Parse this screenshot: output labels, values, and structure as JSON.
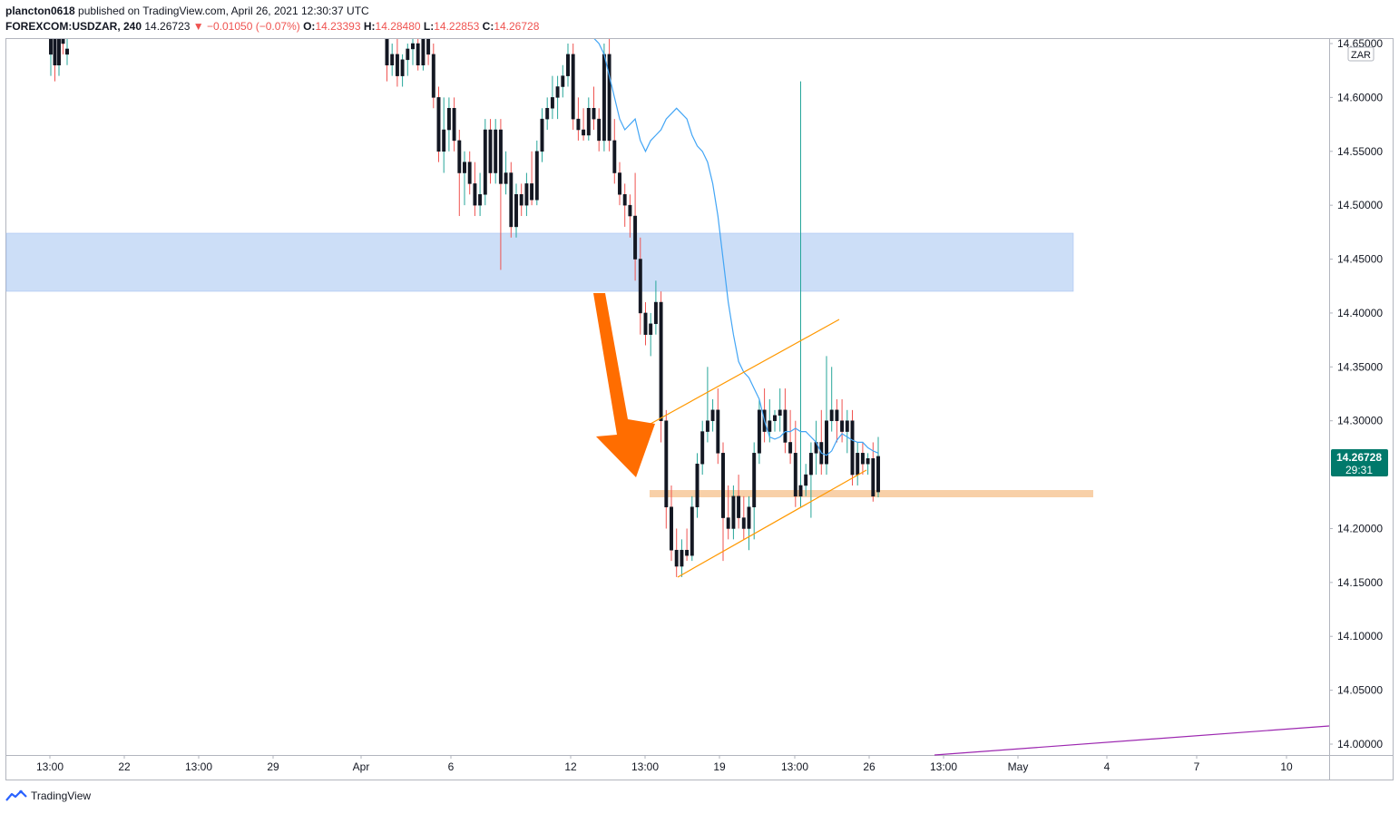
{
  "header": {
    "publisher": "plancton0618",
    "published_text": "published on TradingView.com, April 26, 2021 12:30:37 UTC",
    "symbol": "FOREXCOM:USDZAR, 240",
    "price": "14.26723",
    "change": "▼ −0.01050 (−0.07%)",
    "open_label": "O:",
    "open": "14.23393",
    "high_label": "H:",
    "high": "14.28480",
    "low_label": "L:",
    "low": "14.22853",
    "close_label": "C:",
    "close": "14.26728"
  },
  "footer": {
    "brand": "TradingView",
    "logo_icon": "tradingview-logo-icon"
  },
  "colors": {
    "up": "#26a69a",
    "down": "#ef5350",
    "ma": "#42a5f5",
    "zone": "#c7dbf7",
    "support": "#f8d0a8",
    "channel": "#ff9800",
    "arrow": "#ff6d00",
    "purple": "#9c27b0",
    "price_badge": "#00796b"
  },
  "chart_data": {
    "type": "candlestick",
    "title": "",
    "xlabel": "",
    "ylabel": "",
    "currency_label": "ZAR",
    "ylim": [
      13.985,
      14.65
    ],
    "y_ticks": [
      "14.65000",
      "14.60000",
      "14.55000",
      "14.50000",
      "14.45000",
      "14.40000",
      "14.35000",
      "14.30000",
      "14.20000",
      "14.15000",
      "14.10000",
      "14.05000",
      "14.00000"
    ],
    "x_ticks": [
      "13:00",
      "22",
      "13:00",
      "29",
      "Apr",
      "6",
      "12",
      "13:00",
      "19",
      "13:00",
      "26",
      "13:00",
      "May",
      "4",
      "7",
      "10"
    ],
    "last_price": "14.26728",
    "countdown": "29:31",
    "grid": false,
    "candles": [
      {
        "o": 14.64,
        "h": 14.66,
        "l": 14.62,
        "c": 14.66
      },
      {
        "o": 14.66,
        "h": 14.67,
        "l": 14.615,
        "c": 14.63
      },
      {
        "o": 14.63,
        "h": 14.66,
        "l": 14.62,
        "c": 14.66
      },
      {
        "o": 14.66,
        "h": 14.67,
        "l": 14.64,
        "c": 14.65
      },
      {
        "o": 14.64,
        "h": 14.66,
        "l": 14.63,
        "c": 14.645
      },
      {
        "o": 14.66,
        "h": 14.67,
        "l": 14.615,
        "c": 14.63
      },
      {
        "o": 14.63,
        "h": 14.65,
        "l": 14.62,
        "c": 14.64
      },
      {
        "o": 14.64,
        "h": 14.66,
        "l": 14.61,
        "c": 14.62
      },
      {
        "o": 14.62,
        "h": 14.64,
        "l": 14.61,
        "c": 14.635
      },
      {
        "o": 14.635,
        "h": 14.65,
        "l": 14.62,
        "c": 14.645
      },
      {
        "o": 14.645,
        "h": 14.66,
        "l": 14.63,
        "c": 14.65
      },
      {
        "o": 14.65,
        "h": 14.66,
        "l": 14.625,
        "c": 14.63
      },
      {
        "o": 14.63,
        "h": 14.66,
        "l": 14.625,
        "c": 14.655
      },
      {
        "o": 14.655,
        "h": 14.66,
        "l": 14.63,
        "c": 14.64
      },
      {
        "o": 14.64,
        "h": 14.65,
        "l": 14.59,
        "c": 14.6
      },
      {
        "o": 14.6,
        "h": 14.61,
        "l": 14.54,
        "c": 14.55
      },
      {
        "o": 14.55,
        "h": 14.6,
        "l": 14.53,
        "c": 14.57
      },
      {
        "o": 14.57,
        "h": 14.6,
        "l": 14.55,
        "c": 14.59
      },
      {
        "o": 14.59,
        "h": 14.6,
        "l": 14.55,
        "c": 14.56
      },
      {
        "o": 14.56,
        "h": 14.57,
        "l": 14.49,
        "c": 14.53
      },
      {
        "o": 14.53,
        "h": 14.55,
        "l": 14.5,
        "c": 14.54
      },
      {
        "o": 14.54,
        "h": 14.55,
        "l": 14.51,
        "c": 14.52
      },
      {
        "o": 14.52,
        "h": 14.54,
        "l": 14.49,
        "c": 14.5
      },
      {
        "o": 14.5,
        "h": 14.53,
        "l": 14.49,
        "c": 14.51
      },
      {
        "o": 14.51,
        "h": 14.58,
        "l": 14.5,
        "c": 14.57
      },
      {
        "o": 14.57,
        "h": 14.58,
        "l": 14.52,
        "c": 14.53
      },
      {
        "o": 14.53,
        "h": 14.58,
        "l": 14.52,
        "c": 14.57
      },
      {
        "o": 14.57,
        "h": 14.58,
        "l": 14.44,
        "c": 14.52
      },
      {
        "o": 14.52,
        "h": 14.55,
        "l": 14.51,
        "c": 14.53
      },
      {
        "o": 14.53,
        "h": 14.54,
        "l": 14.47,
        "c": 14.48
      },
      {
        "o": 14.48,
        "h": 14.52,
        "l": 14.47,
        "c": 14.51
      },
      {
        "o": 14.51,
        "h": 14.52,
        "l": 14.49,
        "c": 14.5
      },
      {
        "o": 14.5,
        "h": 14.53,
        "l": 14.49,
        "c": 14.52
      },
      {
        "o": 14.52,
        "h": 14.55,
        "l": 14.5,
        "c": 14.505
      },
      {
        "o": 14.505,
        "h": 14.56,
        "l": 14.5,
        "c": 14.55
      },
      {
        "o": 14.55,
        "h": 14.59,
        "l": 14.54,
        "c": 14.58
      },
      {
        "o": 14.58,
        "h": 14.6,
        "l": 14.57,
        "c": 14.59
      },
      {
        "o": 14.59,
        "h": 14.62,
        "l": 14.58,
        "c": 14.6
      },
      {
        "o": 14.6,
        "h": 14.62,
        "l": 14.58,
        "c": 14.61
      },
      {
        "o": 14.61,
        "h": 14.63,
        "l": 14.6,
        "c": 14.62
      },
      {
        "o": 14.62,
        "h": 14.65,
        "l": 14.61,
        "c": 14.64
      },
      {
        "o": 14.64,
        "h": 14.65,
        "l": 14.57,
        "c": 14.58
      },
      {
        "o": 14.58,
        "h": 14.6,
        "l": 14.56,
        "c": 14.57
      },
      {
        "o": 14.57,
        "h": 14.59,
        "l": 14.56,
        "c": 14.565
      },
      {
        "o": 14.565,
        "h": 14.6,
        "l": 14.56,
        "c": 14.59
      },
      {
        "o": 14.59,
        "h": 14.61,
        "l": 14.57,
        "c": 14.58
      },
      {
        "o": 14.58,
        "h": 14.59,
        "l": 14.55,
        "c": 14.56
      },
      {
        "o": 14.56,
        "h": 14.65,
        "l": 14.55,
        "c": 14.64
      },
      {
        "o": 14.64,
        "h": 14.66,
        "l": 14.55,
        "c": 14.56
      },
      {
        "o": 14.56,
        "h": 14.58,
        "l": 14.52,
        "c": 14.53
      },
      {
        "o": 14.53,
        "h": 14.54,
        "l": 14.5,
        "c": 14.51
      },
      {
        "o": 14.51,
        "h": 14.52,
        "l": 14.48,
        "c": 14.5
      },
      {
        "o": 14.5,
        "h": 14.51,
        "l": 14.47,
        "c": 14.49
      },
      {
        "o": 14.49,
        "h": 14.53,
        "l": 14.43,
        "c": 14.45
      },
      {
        "o": 14.45,
        "h": 14.47,
        "l": 14.38,
        "c": 14.4
      },
      {
        "o": 14.4,
        "h": 14.41,
        "l": 14.37,
        "c": 14.38
      },
      {
        "o": 14.38,
        "h": 14.4,
        "l": 14.36,
        "c": 14.39
      },
      {
        "o": 14.39,
        "h": 14.43,
        "l": 14.38,
        "c": 14.41
      },
      {
        "o": 14.41,
        "h": 14.42,
        "l": 14.28,
        "c": 14.3
      },
      {
        "o": 14.3,
        "h": 14.31,
        "l": 14.2,
        "c": 14.22
      },
      {
        "o": 14.22,
        "h": 14.24,
        "l": 14.17,
        "c": 14.18
      },
      {
        "o": 14.18,
        "h": 14.2,
        "l": 14.155,
        "c": 14.165
      },
      {
        "o": 14.165,
        "h": 14.19,
        "l": 14.155,
        "c": 14.18
      },
      {
        "o": 14.18,
        "h": 14.2,
        "l": 14.17,
        "c": 14.175
      },
      {
        "o": 14.175,
        "h": 14.23,
        "l": 14.17,
        "c": 14.22
      },
      {
        "o": 14.22,
        "h": 14.27,
        "l": 14.21,
        "c": 14.26
      },
      {
        "o": 14.26,
        "h": 14.3,
        "l": 14.25,
        "c": 14.29
      },
      {
        "o": 14.29,
        "h": 14.35,
        "l": 14.28,
        "c": 14.3
      },
      {
        "o": 14.3,
        "h": 14.32,
        "l": 14.29,
        "c": 14.31
      },
      {
        "o": 14.31,
        "h": 14.33,
        "l": 14.26,
        "c": 14.27
      },
      {
        "o": 14.27,
        "h": 14.28,
        "l": 14.17,
        "c": 14.21
      },
      {
        "o": 14.21,
        "h": 14.24,
        "l": 14.19,
        "c": 14.2
      },
      {
        "o": 14.2,
        "h": 14.24,
        "l": 14.19,
        "c": 14.23
      },
      {
        "o": 14.23,
        "h": 14.25,
        "l": 14.2,
        "c": 14.21
      },
      {
        "o": 14.21,
        "h": 14.23,
        "l": 14.19,
        "c": 14.2
      },
      {
        "o": 14.2,
        "h": 14.23,
        "l": 14.18,
        "c": 14.22
      },
      {
        "o": 14.22,
        "h": 14.28,
        "l": 14.19,
        "c": 14.27
      },
      {
        "o": 14.27,
        "h": 14.32,
        "l": 14.26,
        "c": 14.31
      },
      {
        "o": 14.31,
        "h": 14.33,
        "l": 14.28,
        "c": 14.29
      },
      {
        "o": 14.29,
        "h": 14.32,
        "l": 14.28,
        "c": 14.3
      },
      {
        "o": 14.3,
        "h": 14.31,
        "l": 14.29,
        "c": 14.305
      },
      {
        "o": 14.305,
        "h": 14.33,
        "l": 14.29,
        "c": 14.31
      },
      {
        "o": 14.31,
        "h": 14.33,
        "l": 14.27,
        "c": 14.28
      },
      {
        "o": 14.28,
        "h": 14.31,
        "l": 14.26,
        "c": 14.27
      },
      {
        "o": 14.27,
        "h": 14.3,
        "l": 14.22,
        "c": 14.23
      },
      {
        "o": 14.23,
        "h": 14.615,
        "l": 14.22,
        "c": 14.24
      },
      {
        "o": 14.24,
        "h": 14.26,
        "l": 14.23,
        "c": 14.25
      },
      {
        "o": 14.25,
        "h": 14.28,
        "l": 14.21,
        "c": 14.27
      },
      {
        "o": 14.27,
        "h": 14.3,
        "l": 14.25,
        "c": 14.28
      },
      {
        "o": 14.28,
        "h": 14.31,
        "l": 14.25,
        "c": 14.26
      },
      {
        "o": 14.26,
        "h": 14.36,
        "l": 14.25,
        "c": 14.3
      },
      {
        "o": 14.3,
        "h": 14.35,
        "l": 14.29,
        "c": 14.31
      },
      {
        "o": 14.31,
        "h": 14.32,
        "l": 14.28,
        "c": 14.3
      },
      {
        "o": 14.3,
        "h": 14.32,
        "l": 14.28,
        "c": 14.29
      },
      {
        "o": 14.29,
        "h": 14.31,
        "l": 14.27,
        "c": 14.3
      },
      {
        "o": 14.3,
        "h": 14.31,
        "l": 14.24,
        "c": 14.25
      },
      {
        "o": 14.25,
        "h": 14.28,
        "l": 14.24,
        "c": 14.27
      },
      {
        "o": 14.27,
        "h": 14.28,
        "l": 14.25,
        "c": 14.26
      },
      {
        "o": 14.26,
        "h": 14.27,
        "l": 14.25,
        "c": 14.265
      },
      {
        "o": 14.265,
        "h": 14.28,
        "l": 14.225,
        "c": 14.23
      },
      {
        "o": 14.234,
        "h": 14.285,
        "l": 14.229,
        "c": 14.267
      }
    ],
    "moving_average": [
      14.66,
      14.66,
      14.655,
      14.65,
      14.64,
      14.62,
      14.6,
      14.58,
      14.57,
      14.575,
      14.58,
      14.56,
      14.55,
      14.56,
      14.565,
      14.57,
      14.58,
      14.585,
      14.59,
      14.585,
      14.58,
      14.565,
      14.555,
      14.55,
      14.54,
      14.52,
      14.49,
      14.45,
      14.41,
      14.38,
      14.355,
      14.345,
      14.34,
      14.33,
      14.32,
      14.3,
      14.285,
      14.283,
      14.285,
      14.29,
      14.29,
      14.293,
      14.29,
      14.29,
      14.285,
      14.28,
      14.27,
      14.268,
      14.272,
      14.282,
      14.288,
      14.285,
      14.282,
      14.28,
      14.28,
      14.275,
      14.272,
      14.27
    ],
    "resistance_zone": [
      14.423,
      14.475
    ],
    "support_level": 14.232
  }
}
